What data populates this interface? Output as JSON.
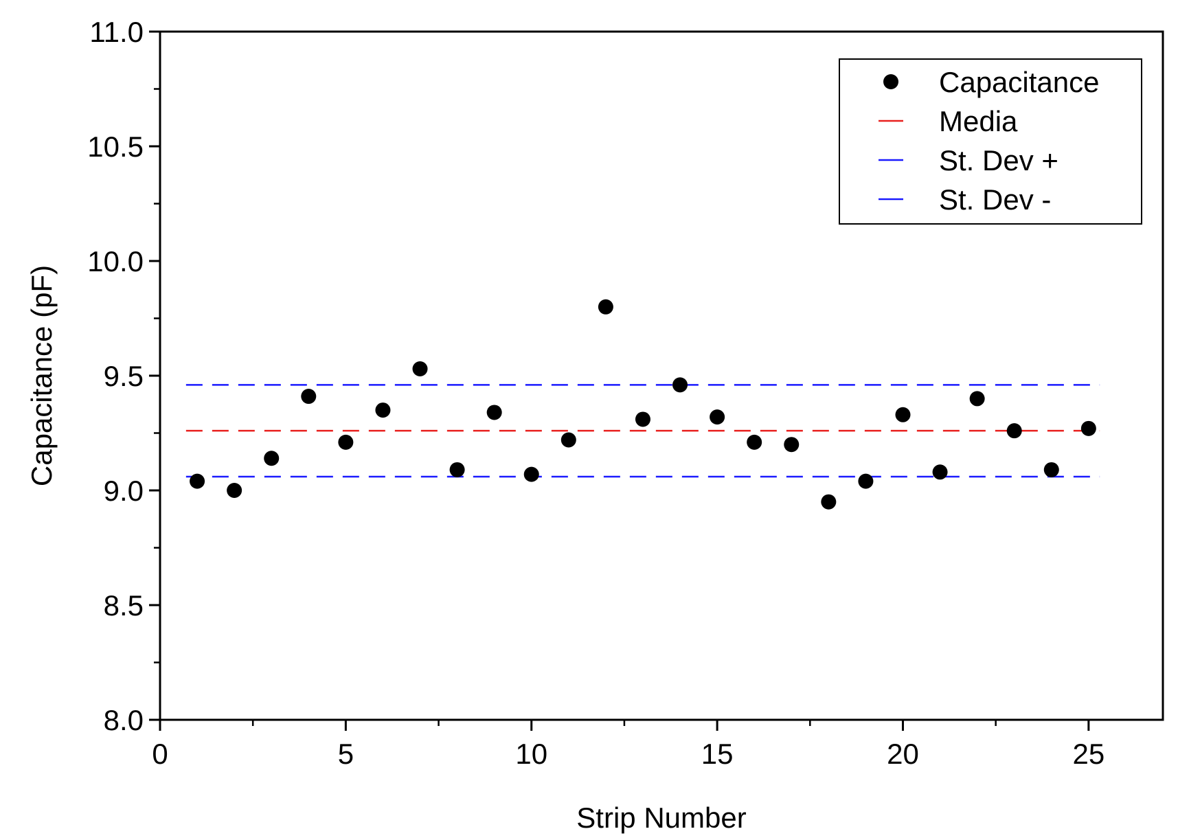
{
  "chart_data": {
    "type": "scatter",
    "title": "",
    "xlabel": "Strip Number",
    "ylabel": "Capacitance (pF)",
    "xlim": [
      0,
      27
    ],
    "ylim": [
      8.0,
      11.0
    ],
    "x_ticks": [
      0,
      5,
      10,
      15,
      20,
      25
    ],
    "x_tick_labels": [
      "0",
      "5",
      "10",
      "15",
      "20",
      "25"
    ],
    "y_ticks": [
      8.0,
      8.5,
      9.0,
      9.5,
      10.0,
      10.5,
      11.0
    ],
    "y_tick_labels": [
      "8.0",
      "8.5",
      "9.0",
      "9.5",
      "10.0",
      "10.5",
      "11.0"
    ],
    "grid": false,
    "legend_position": "top-right",
    "series": [
      {
        "name": "Capacitance",
        "kind": "points",
        "color": "#000000",
        "x": [
          1,
          2,
          3,
          4,
          5,
          6,
          7,
          8,
          9,
          10,
          11,
          12,
          13,
          14,
          15,
          16,
          17,
          18,
          19,
          20,
          21,
          22,
          23,
          24,
          25
        ],
        "values": [
          9.04,
          9.0,
          9.14,
          9.41,
          9.21,
          9.35,
          9.53,
          9.09,
          9.34,
          9.07,
          9.22,
          9.8,
          9.31,
          9.46,
          9.32,
          9.21,
          9.2,
          8.95,
          9.04,
          9.33,
          9.08,
          9.4,
          9.26,
          9.09,
          9.27
        ]
      },
      {
        "name": "Media",
        "kind": "hline",
        "color": "#e8201e",
        "value": 9.26,
        "x_range": [
          0.7,
          25.3
        ]
      },
      {
        "name": "St. Dev +",
        "kind": "hline",
        "color": "#1a1aff",
        "value": 9.46,
        "x_range": [
          0.7,
          25.3
        ]
      },
      {
        "name": "St. Dev -",
        "kind": "hline",
        "color": "#1a1aff",
        "value": 9.06,
        "x_range": [
          0.7,
          25.3
        ]
      }
    ]
  }
}
